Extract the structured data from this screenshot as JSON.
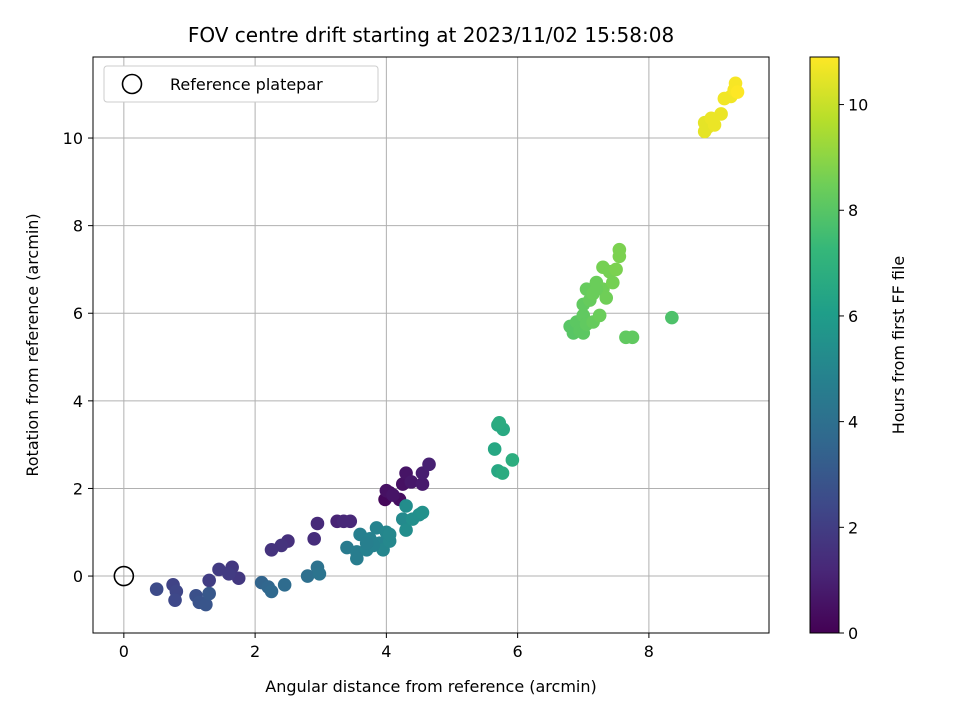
{
  "chart_data": {
    "type": "scatter",
    "title": "FOV centre drift starting at 2023/11/02 15:58:08",
    "xlabel": "Angular distance from reference (arcmin)",
    "ylabel": "Rotation from reference (arcmin)",
    "xlim": [
      -0.47,
      9.83
    ],
    "ylim": [
      -1.3,
      11.85
    ],
    "xticks": [
      0,
      2,
      4,
      6,
      8
    ],
    "yticks": [
      0,
      2,
      4,
      6,
      8,
      10
    ],
    "grid": true,
    "legend": {
      "placement": "top-left",
      "entries": [
        "Reference platepar"
      ]
    },
    "reference_point": {
      "x": 0,
      "y": 0,
      "label": "Reference platepar"
    },
    "colorbar": {
      "label": "Hours from first FF file",
      "range": [
        0,
        10.9
      ],
      "ticks": [
        0,
        2,
        4,
        6,
        8,
        10
      ],
      "colormap": "viridis",
      "stops": [
        "#440154",
        "#482878",
        "#3e4989",
        "#31688e",
        "#26828e",
        "#1f9e89",
        "#35b779",
        "#6ece58",
        "#b5de2b",
        "#fde725"
      ]
    },
    "points": [
      {
        "x": 3.98,
        "y": 1.75,
        "c": 0.2
      },
      {
        "x": 4.05,
        "y": 1.9,
        "c": 0.3
      },
      {
        "x": 4.2,
        "y": 1.75,
        "c": 0.4
      },
      {
        "x": 4.0,
        "y": 1.95,
        "c": 0.5
      },
      {
        "x": 4.25,
        "y": 2.1,
        "c": 0.5
      },
      {
        "x": 4.3,
        "y": 2.35,
        "c": 0.6
      },
      {
        "x": 4.38,
        "y": 2.15,
        "c": 0.7
      },
      {
        "x": 4.55,
        "y": 2.1,
        "c": 0.8
      },
      {
        "x": 4.55,
        "y": 2.35,
        "c": 0.9
      },
      {
        "x": 4.65,
        "y": 2.55,
        "c": 1.0
      },
      {
        "x": 4.1,
        "y": 1.85,
        "c": 0.6
      },
      {
        "x": 3.25,
        "y": 1.25,
        "c": 1.1
      },
      {
        "x": 3.35,
        "y": 1.25,
        "c": 1.2
      },
      {
        "x": 3.45,
        "y": 1.25,
        "c": 1.2
      },
      {
        "x": 2.95,
        "y": 1.2,
        "c": 1.3
      },
      {
        "x": 2.9,
        "y": 0.85,
        "c": 1.4
      },
      {
        "x": 2.5,
        "y": 0.8,
        "c": 1.5
      },
      {
        "x": 2.4,
        "y": 0.7,
        "c": 1.6
      },
      {
        "x": 2.25,
        "y": 0.6,
        "c": 1.6
      },
      {
        "x": 1.65,
        "y": 0.2,
        "c": 1.8
      },
      {
        "x": 1.75,
        "y": -0.05,
        "c": 1.8
      },
      {
        "x": 1.45,
        "y": 0.15,
        "c": 1.9
      },
      {
        "x": 1.6,
        "y": 0.05,
        "c": 1.9
      },
      {
        "x": 1.3,
        "y": -0.1,
        "c": 2.0
      },
      {
        "x": 0.75,
        "y": -0.2,
        "c": 2.2
      },
      {
        "x": 0.8,
        "y": -0.35,
        "c": 2.3
      },
      {
        "x": 0.78,
        "y": -0.55,
        "c": 2.4
      },
      {
        "x": 0.5,
        "y": -0.3,
        "c": 2.5
      },
      {
        "x": 1.1,
        "y": -0.45,
        "c": 2.7
      },
      {
        "x": 1.15,
        "y": -0.6,
        "c": 2.8
      },
      {
        "x": 1.25,
        "y": -0.65,
        "c": 2.9
      },
      {
        "x": 1.3,
        "y": -0.4,
        "c": 3.0
      },
      {
        "x": 2.1,
        "y": -0.15,
        "c": 3.5
      },
      {
        "x": 2.2,
        "y": -0.25,
        "c": 3.6
      },
      {
        "x": 2.25,
        "y": -0.35,
        "c": 3.7
      },
      {
        "x": 2.45,
        "y": -0.2,
        "c": 3.8
      },
      {
        "x": 2.8,
        "y": 0.0,
        "c": 4.0
      },
      {
        "x": 2.95,
        "y": 0.2,
        "c": 4.1
      },
      {
        "x": 2.98,
        "y": 0.05,
        "c": 4.2
      },
      {
        "x": 3.4,
        "y": 0.65,
        "c": 4.5
      },
      {
        "x": 3.55,
        "y": 0.55,
        "c": 4.6
      },
      {
        "x": 3.55,
        "y": 0.4,
        "c": 4.6
      },
      {
        "x": 3.6,
        "y": 0.95,
        "c": 4.7
      },
      {
        "x": 3.7,
        "y": 0.6,
        "c": 4.8
      },
      {
        "x": 3.75,
        "y": 0.85,
        "c": 4.8
      },
      {
        "x": 3.85,
        "y": 1.1,
        "c": 4.9
      },
      {
        "x": 3.9,
        "y": 0.75,
        "c": 4.9
      },
      {
        "x": 3.95,
        "y": 0.6,
        "c": 5.0
      },
      {
        "x": 4.0,
        "y": 1.0,
        "c": 5.0
      },
      {
        "x": 4.05,
        "y": 0.8,
        "c": 5.1
      },
      {
        "x": 3.8,
        "y": 0.7,
        "c": 4.8
      },
      {
        "x": 4.05,
        "y": 0.95,
        "c": 5.1
      },
      {
        "x": 3.7,
        "y": 0.75,
        "c": 4.7
      },
      {
        "x": 4.25,
        "y": 1.3,
        "c": 5.2
      },
      {
        "x": 4.3,
        "y": 1.6,
        "c": 5.3
      },
      {
        "x": 4.3,
        "y": 1.05,
        "c": 5.3
      },
      {
        "x": 4.4,
        "y": 1.3,
        "c": 5.4
      },
      {
        "x": 4.5,
        "y": 1.4,
        "c": 5.4
      },
      {
        "x": 4.55,
        "y": 1.45,
        "c": 5.5
      },
      {
        "x": 5.65,
        "y": 2.9,
        "c": 6.5
      },
      {
        "x": 5.7,
        "y": 2.4,
        "c": 6.5
      },
      {
        "x": 5.7,
        "y": 3.45,
        "c": 6.6
      },
      {
        "x": 5.78,
        "y": 3.35,
        "c": 6.6
      },
      {
        "x": 5.72,
        "y": 3.5,
        "c": 6.7
      },
      {
        "x": 5.77,
        "y": 2.35,
        "c": 6.7
      },
      {
        "x": 5.92,
        "y": 2.65,
        "c": 6.8
      },
      {
        "x": 6.8,
        "y": 5.7,
        "c": 8.0
      },
      {
        "x": 6.85,
        "y": 5.55,
        "c": 8.0
      },
      {
        "x": 6.9,
        "y": 5.8,
        "c": 8.1
      },
      {
        "x": 6.95,
        "y": 5.6,
        "c": 8.1
      },
      {
        "x": 7.0,
        "y": 5.55,
        "c": 8.1
      },
      {
        "x": 7.0,
        "y": 5.95,
        "c": 8.2
      },
      {
        "x": 7.05,
        "y": 5.75,
        "c": 8.2
      },
      {
        "x": 7.0,
        "y": 6.2,
        "c": 8.2
      },
      {
        "x": 7.1,
        "y": 6.3,
        "c": 8.3
      },
      {
        "x": 7.15,
        "y": 5.8,
        "c": 8.3
      },
      {
        "x": 7.05,
        "y": 6.55,
        "c": 8.3
      },
      {
        "x": 7.15,
        "y": 6.45,
        "c": 8.4
      },
      {
        "x": 7.2,
        "y": 6.7,
        "c": 8.4
      },
      {
        "x": 7.25,
        "y": 5.95,
        "c": 8.4
      },
      {
        "x": 7.3,
        "y": 6.55,
        "c": 8.5
      },
      {
        "x": 7.35,
        "y": 6.35,
        "c": 8.5
      },
      {
        "x": 7.3,
        "y": 7.05,
        "c": 8.6
      },
      {
        "x": 7.4,
        "y": 6.95,
        "c": 8.6
      },
      {
        "x": 7.45,
        "y": 6.7,
        "c": 8.6
      },
      {
        "x": 7.5,
        "y": 7.0,
        "c": 8.7
      },
      {
        "x": 7.55,
        "y": 7.3,
        "c": 8.7
      },
      {
        "x": 7.55,
        "y": 7.45,
        "c": 8.7
      },
      {
        "x": 7.65,
        "y": 5.45,
        "c": 8.2
      },
      {
        "x": 7.75,
        "y": 5.45,
        "c": 8.2
      },
      {
        "x": 8.35,
        "y": 5.9,
        "c": 7.8
      },
      {
        "x": 7.2,
        "y": 6.55,
        "c": 8.4
      },
      {
        "x": 8.85,
        "y": 10.35,
        "c": 10.5
      },
      {
        "x": 8.85,
        "y": 10.15,
        "c": 10.5
      },
      {
        "x": 8.9,
        "y": 10.25,
        "c": 10.5
      },
      {
        "x": 8.95,
        "y": 10.45,
        "c": 10.6
      },
      {
        "x": 9.0,
        "y": 10.3,
        "c": 10.6
      },
      {
        "x": 9.1,
        "y": 10.55,
        "c": 10.6
      },
      {
        "x": 9.15,
        "y": 10.9,
        "c": 10.7
      },
      {
        "x": 9.25,
        "y": 10.95,
        "c": 10.7
      },
      {
        "x": 9.3,
        "y": 11.1,
        "c": 10.8
      },
      {
        "x": 9.32,
        "y": 11.25,
        "c": 10.8
      },
      {
        "x": 9.35,
        "y": 11.05,
        "c": 10.9
      }
    ]
  }
}
